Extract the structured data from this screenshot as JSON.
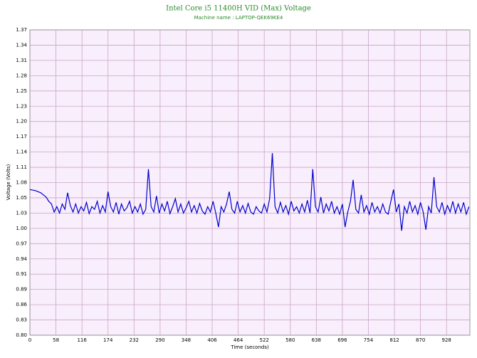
{
  "chart_data": {
    "type": "line",
    "title": "Intel Core i5 11400H VID (Max) Voltage",
    "subtitle": "Machine name : LAPTOP-QEK69KE4",
    "x_label": "Time (seconds)",
    "y_label": "Voltage (Volts)",
    "xlim": [
      0,
      980
    ],
    "ylim": [
      0.8,
      1.37
    ],
    "xticks": [
      0,
      58,
      116,
      174,
      232,
      290,
      348,
      406,
      464,
      522,
      580,
      638,
      696,
      754,
      812,
      870,
      928
    ],
    "yticks": [
      {
        "value": 0.8,
        "label": "0.80"
      },
      {
        "value": 0.8285,
        "label": "0.83"
      },
      {
        "value": 0.857,
        "label": "0.86"
      },
      {
        "value": 0.8855,
        "label": "0.89"
      },
      {
        "value": 0.914,
        "label": "0.91"
      },
      {
        "value": 0.9425,
        "label": "0.94"
      },
      {
        "value": 0.971,
        "label": "0.97"
      },
      {
        "value": 0.9995,
        "label": "1.00"
      },
      {
        "value": 1.028,
        "label": "1.03"
      },
      {
        "value": 1.0565,
        "label": "1.05"
      },
      {
        "value": 1.085,
        "label": "1.08"
      },
      {
        "value": 1.1135,
        "label": "1.11"
      },
      {
        "value": 1.142,
        "label": "1.14"
      },
      {
        "value": 1.1705,
        "label": "1.17"
      },
      {
        "value": 1.199,
        "label": "1.20"
      },
      {
        "value": 1.2275,
        "label": "1.23"
      },
      {
        "value": 1.256,
        "label": "1.25"
      },
      {
        "value": 1.2845,
        "label": "1.28"
      },
      {
        "value": 1.313,
        "label": "1.31"
      },
      {
        "value": 1.3415,
        "label": "1.34"
      },
      {
        "value": 1.37,
        "label": "1.37"
      }
    ],
    "grid": true,
    "x": [
      0,
      6,
      12,
      18,
      24,
      30,
      36,
      42,
      48,
      54,
      60,
      66,
      72,
      78,
      84,
      90,
      96,
      102,
      108,
      114,
      120,
      126,
      132,
      138,
      144,
      150,
      156,
      162,
      168,
      174,
      180,
      186,
      192,
      198,
      204,
      210,
      216,
      222,
      228,
      234,
      240,
      246,
      252,
      258,
      264,
      270,
      276,
      282,
      288,
      294,
      300,
      306,
      312,
      318,
      324,
      330,
      336,
      342,
      348,
      354,
      360,
      366,
      372,
      378,
      384,
      390,
      396,
      402,
      408,
      414,
      420,
      426,
      432,
      438,
      444,
      450,
      456,
      462,
      468,
      474,
      480,
      486,
      492,
      498,
      504,
      510,
      516,
      522,
      528,
      534,
      540,
      546,
      552,
      558,
      564,
      570,
      576,
      582,
      588,
      594,
      600,
      606,
      612,
      618,
      624,
      630,
      636,
      642,
      648,
      654,
      660,
      666,
      672,
      678,
      684,
      690,
      696,
      702,
      708,
      714,
      720,
      726,
      732,
      738,
      744,
      750,
      756,
      762,
      768,
      774,
      780,
      786,
      792,
      798,
      804,
      810,
      816,
      822,
      828,
      834,
      840,
      846,
      852,
      858,
      864,
      870,
      876,
      882,
      888,
      894,
      900,
      906,
      912,
      918,
      924,
      930,
      936,
      942,
      948,
      954,
      960,
      966,
      972,
      978
    ],
    "series": [
      {
        "color": "#0000cc",
        "values": [
          1.072,
          1.071,
          1.07,
          1.068,
          1.066,
          1.062,
          1.058,
          1.05,
          1.045,
          1.03,
          1.04,
          1.028,
          1.045,
          1.035,
          1.066,
          1.042,
          1.03,
          1.045,
          1.028,
          1.04,
          1.032,
          1.048,
          1.027,
          1.04,
          1.035,
          1.05,
          1.028,
          1.042,
          1.03,
          1.068,
          1.04,
          1.03,
          1.048,
          1.026,
          1.045,
          1.032,
          1.038,
          1.05,
          1.028,
          1.04,
          1.03,
          1.045,
          1.026,
          1.035,
          1.11,
          1.04,
          1.03,
          1.06,
          1.028,
          1.045,
          1.032,
          1.05,
          1.027,
          1.04,
          1.055,
          1.03,
          1.045,
          1.028,
          1.038,
          1.05,
          1.03,
          1.042,
          1.028,
          1.046,
          1.032,
          1.026,
          1.04,
          1.03,
          1.05,
          1.028,
          1.002,
          1.04,
          1.03,
          1.045,
          1.068,
          1.035,
          1.028,
          1.05,
          1.03,
          1.042,
          1.028,
          1.046,
          1.03,
          1.026,
          1.04,
          1.032,
          1.028,
          1.045,
          1.03,
          1.055,
          1.14,
          1.04,
          1.028,
          1.048,
          1.03,
          1.042,
          1.026,
          1.05,
          1.032,
          1.04,
          1.028,
          1.045,
          1.03,
          1.052,
          1.028,
          1.11,
          1.04,
          1.03,
          1.058,
          1.028,
          1.045,
          1.032,
          1.05,
          1.028,
          1.04,
          1.026,
          1.045,
          1.002,
          1.03,
          1.05,
          1.09,
          1.035,
          1.028,
          1.062,
          1.03,
          1.042,
          1.026,
          1.048,
          1.03,
          1.04,
          1.028,
          1.045,
          1.03,
          1.026,
          1.05,
          1.072,
          1.03,
          1.045,
          0.995,
          1.04,
          1.028,
          1.05,
          1.03,
          1.042,
          1.026,
          1.048,
          1.03,
          0.997,
          1.04,
          1.028,
          1.095,
          1.04,
          1.03,
          1.048,
          1.026,
          1.042,
          1.03,
          1.05,
          1.028,
          1.045,
          1.03,
          1.048,
          1.026,
          1.04
        ]
      }
    ]
  }
}
